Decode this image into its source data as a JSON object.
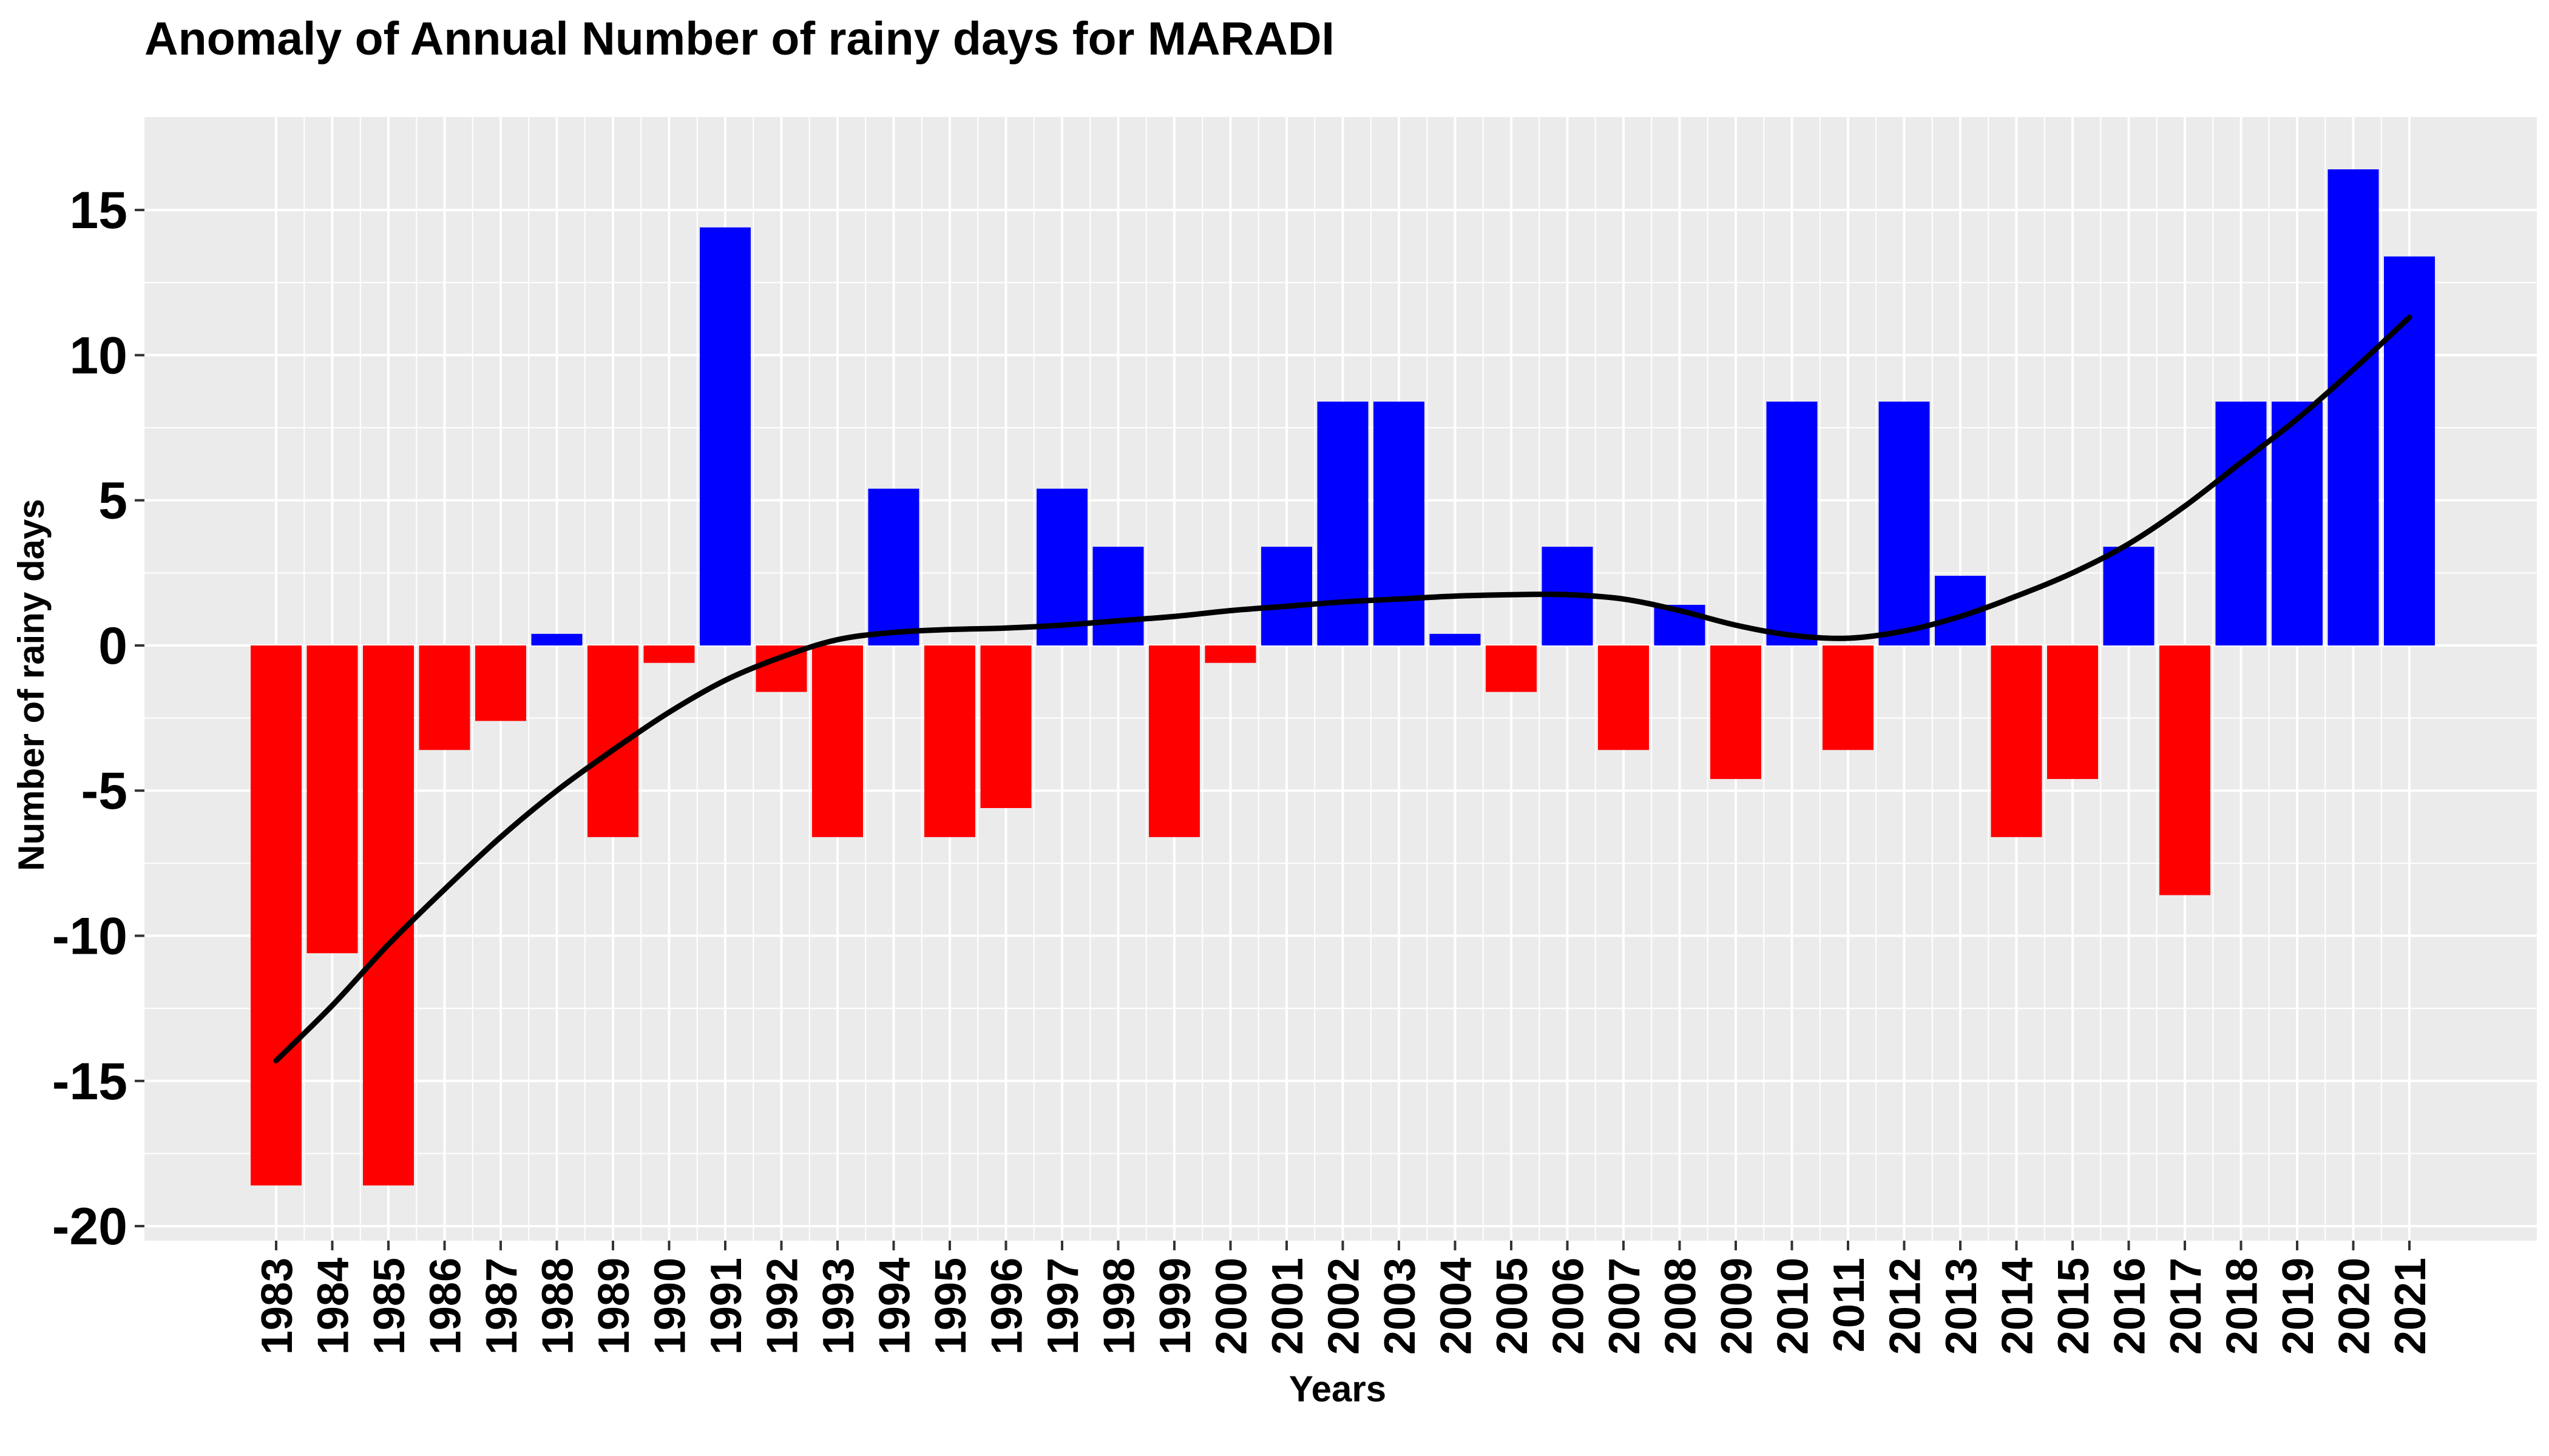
{
  "chart_data": {
    "type": "bar",
    "title": "Anomaly of Annual Number of rainy days for MARADI",
    "xlabel": "Years",
    "ylabel": "Number of rainy days",
    "ylim": [
      -20.5,
      18.2
    ],
    "yticks": [
      -20,
      -15,
      -10,
      -5,
      0,
      5,
      10,
      15
    ],
    "ytick_labels": [
      "-20",
      "-15",
      "-10",
      "-5",
      "0",
      "5",
      "10",
      "15"
    ],
    "grid": true,
    "legend": "none",
    "colors": {
      "positive": "#0000ff",
      "negative": "#ff0000",
      "trend": "#000000",
      "panel": "#ebebeb",
      "grid": "#ffffff"
    },
    "categories": [
      "1983",
      "1984",
      "1985",
      "1986",
      "1987",
      "1988",
      "1989",
      "1990",
      "1991",
      "1992",
      "1993",
      "1994",
      "1995",
      "1996",
      "1997",
      "1998",
      "1999",
      "2000",
      "2001",
      "2002",
      "2003",
      "2004",
      "2005",
      "2006",
      "2007",
      "2008",
      "2009",
      "2010",
      "2011",
      "2012",
      "2013",
      "2014",
      "2015",
      "2016",
      "2017",
      "2018",
      "2019",
      "2020",
      "2021"
    ],
    "values": [
      -18.6,
      -10.6,
      -18.6,
      -3.6,
      -2.6,
      0.4,
      -6.6,
      -0.6,
      14.4,
      -1.6,
      -6.6,
      5.4,
      -6.6,
      -5.6,
      5.4,
      3.4,
      -6.6,
      -0.6,
      3.4,
      8.4,
      8.4,
      0.4,
      -1.6,
      3.4,
      -3.6,
      1.4,
      -4.6,
      8.4,
      -3.6,
      8.4,
      2.4,
      -6.6,
      -4.6,
      3.4,
      -8.6,
      8.4,
      8.4,
      16.4,
      13.4
    ],
    "trend": [
      -14.3,
      -12.4,
      -10.3,
      -8.4,
      -6.6,
      -5.0,
      -3.6,
      -2.3,
      -1.2,
      -0.4,
      0.2,
      0.45,
      0.55,
      0.6,
      0.7,
      0.85,
      1.0,
      1.2,
      1.35,
      1.5,
      1.6,
      1.7,
      1.75,
      1.75,
      1.6,
      1.2,
      0.7,
      0.35,
      0.25,
      0.5,
      1.0,
      1.7,
      2.5,
      3.5,
      4.8,
      6.3,
      7.8,
      9.5,
      11.3
    ]
  }
}
